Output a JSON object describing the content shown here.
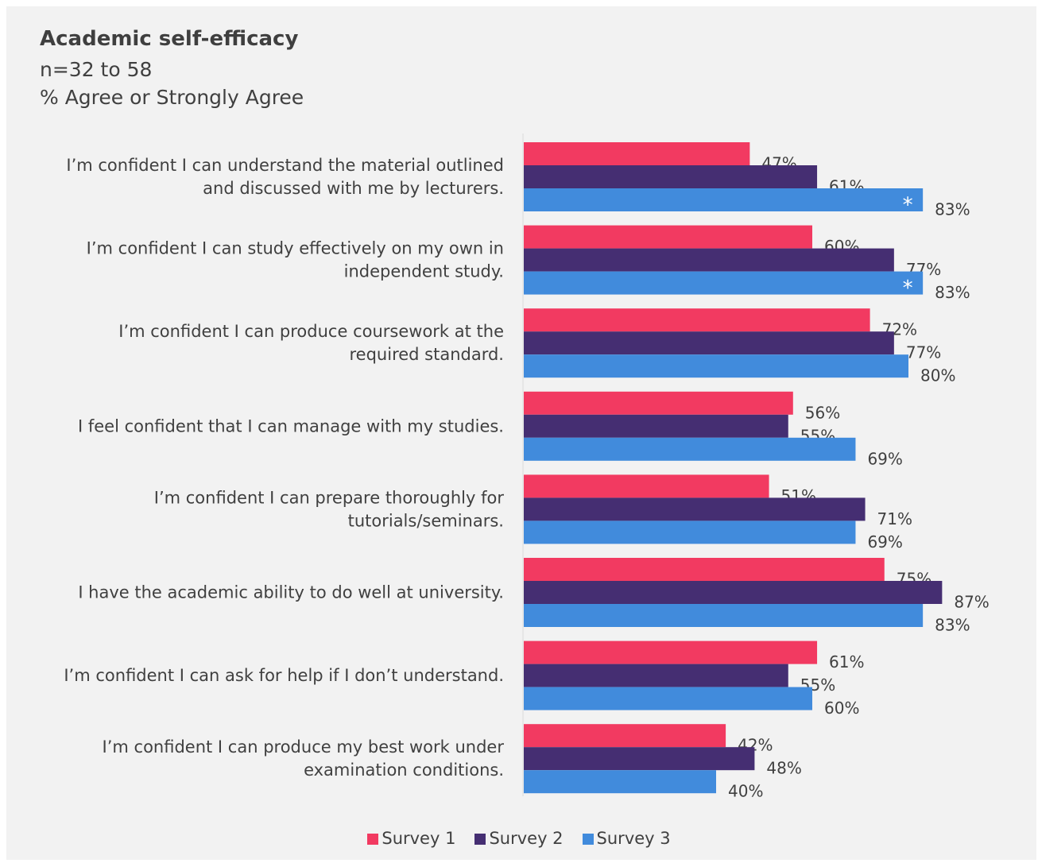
{
  "header": {
    "title": "Academic self-efficacy",
    "subtitle": "n=32 to 58",
    "subtitle2": "% Agree or Strongly Agree"
  },
  "chart_data": {
    "type": "bar",
    "orientation": "horizontal",
    "title": "Academic self-efficacy",
    "categories": [
      [
        "I’m confident I can understand the material outlined",
        "and discussed with me by lecturers."
      ],
      [
        "I’m confident I can study effectively on my own in",
        "independent study."
      ],
      [
        "I’m confident I can produce coursework at the",
        "required standard."
      ],
      [
        "I feel confident that I can manage with my studies."
      ],
      [
        "I’m confident I can prepare thoroughly for",
        "tutorials/seminars."
      ],
      [
        "I have the academic ability to do well at university."
      ],
      [
        "I’m confident I can ask for help if I don’t understand."
      ],
      [
        "I’m confident I can produce my best work under",
        "examination conditions."
      ]
    ],
    "series": [
      {
        "name": "Survey 1",
        "color": "#f23a61",
        "values": [
          47,
          60,
          72,
          56,
          51,
          75,
          61,
          42
        ]
      },
      {
        "name": "Survey 2",
        "color": "#452e72",
        "values": [
          61,
          77,
          77,
          55,
          71,
          87,
          55,
          48
        ]
      },
      {
        "name": "Survey 3",
        "color": "#418bdc",
        "values": [
          83,
          83,
          80,
          69,
          69,
          83,
          60,
          40
        ]
      }
    ],
    "annotations": [
      {
        "category_index": 0,
        "series": "Survey 3",
        "text": "*"
      },
      {
        "category_index": 1,
        "series": "Survey 3",
        "text": "*"
      }
    ],
    "value_suffix": "%",
    "xlim": [
      0,
      100
    ],
    "grid": false,
    "legend_position": "bottom"
  }
}
